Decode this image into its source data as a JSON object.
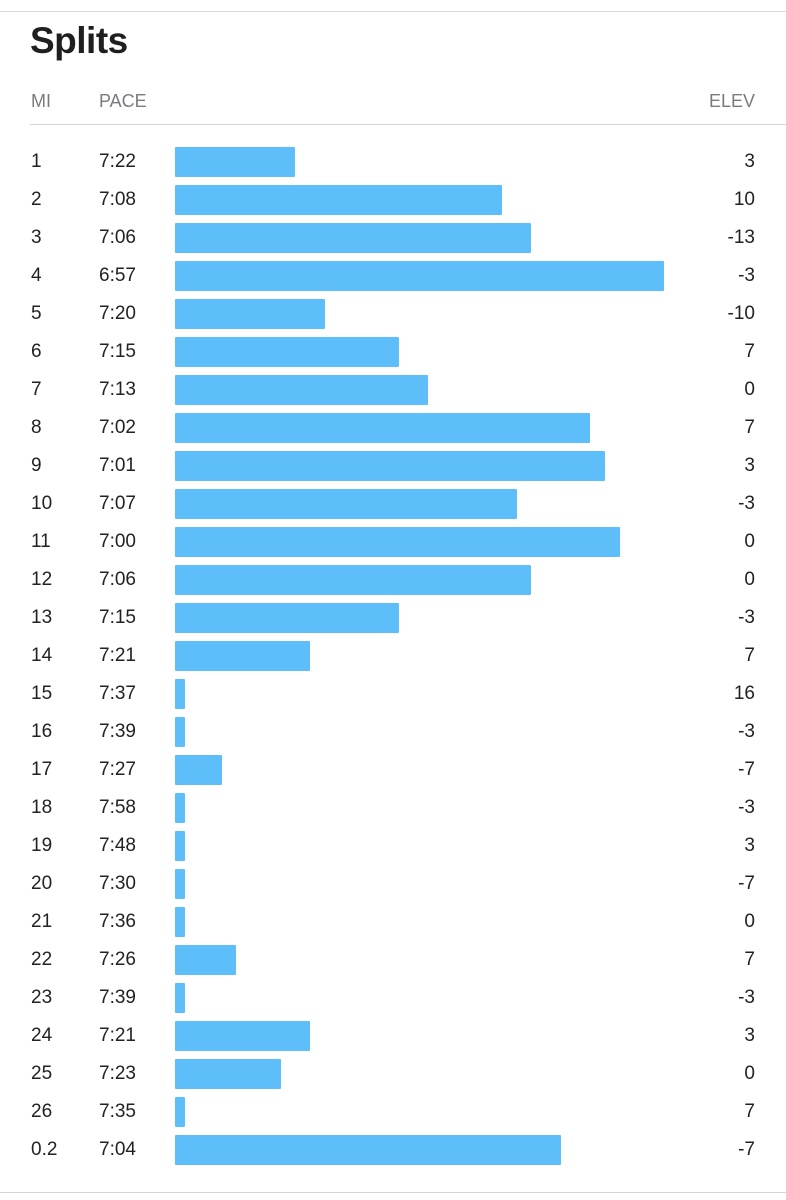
{
  "title": "Splits",
  "headers": {
    "mi": "MI",
    "pace": "PACE",
    "elev": "ELEV"
  },
  "colors": {
    "bar": "#5dbef9"
  },
  "chart_data": {
    "type": "bar",
    "orientation": "horizontal",
    "value_field": "pace",
    "rows": [
      {
        "mi": "1",
        "pace": "7:22",
        "elev": "3"
      },
      {
        "mi": "2",
        "pace": "7:08",
        "elev": "10"
      },
      {
        "mi": "3",
        "pace": "7:06",
        "elev": "-13"
      },
      {
        "mi": "4",
        "pace": "6:57",
        "elev": "-3"
      },
      {
        "mi": "5",
        "pace": "7:20",
        "elev": "-10"
      },
      {
        "mi": "6",
        "pace": "7:15",
        "elev": "7"
      },
      {
        "mi": "7",
        "pace": "7:13",
        "elev": "0"
      },
      {
        "mi": "8",
        "pace": "7:02",
        "elev": "7"
      },
      {
        "mi": "9",
        "pace": "7:01",
        "elev": "3"
      },
      {
        "mi": "10",
        "pace": "7:07",
        "elev": "-3"
      },
      {
        "mi": "11",
        "pace": "7:00",
        "elev": "0"
      },
      {
        "mi": "12",
        "pace": "7:06",
        "elev": "0"
      },
      {
        "mi": "13",
        "pace": "7:15",
        "elev": "-3"
      },
      {
        "mi": "14",
        "pace": "7:21",
        "elev": "7"
      },
      {
        "mi": "15",
        "pace": "7:37",
        "elev": "16"
      },
      {
        "mi": "16",
        "pace": "7:39",
        "elev": "-3"
      },
      {
        "mi": "17",
        "pace": "7:27",
        "elev": "-7"
      },
      {
        "mi": "18",
        "pace": "7:58",
        "elev": "-3"
      },
      {
        "mi": "19",
        "pace": "7:48",
        "elev": "3"
      },
      {
        "mi": "20",
        "pace": "7:30",
        "elev": "-7"
      },
      {
        "mi": "21",
        "pace": "7:36",
        "elev": "0"
      },
      {
        "mi": "22",
        "pace": "7:26",
        "elev": "7"
      },
      {
        "mi": "23",
        "pace": "7:39",
        "elev": "-3"
      },
      {
        "mi": "24",
        "pace": "7:21",
        "elev": "3"
      },
      {
        "mi": "25",
        "pace": "7:23",
        "elev": "0"
      },
      {
        "mi": "26",
        "pace": "7:35",
        "elev": "7"
      },
      {
        "mi": "0.2",
        "pace": "7:04",
        "elev": "-7"
      }
    ]
  }
}
